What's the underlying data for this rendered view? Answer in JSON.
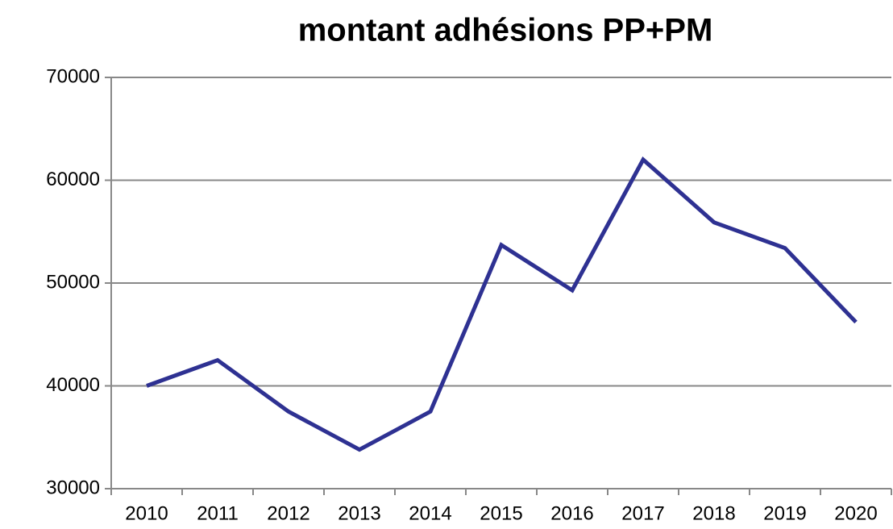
{
  "chart_data": {
    "type": "line",
    "title": "montant adhésions PP+PM",
    "categories": [
      "2010",
      "2011",
      "2012",
      "2013",
      "2014",
      "2015",
      "2016",
      "2017",
      "2018",
      "2019",
      "2020"
    ],
    "series": [
      {
        "color": "#2e3192",
        "values": [
          40000,
          42500,
          37500,
          33800,
          37500,
          53700,
          49300,
          62000,
          55900,
          53400,
          46200
        ]
      }
    ],
    "ylim": [
      30000,
      70000
    ],
    "yticks": [
      30000,
      40000,
      50000,
      60000,
      70000
    ],
    "grid": true
  }
}
